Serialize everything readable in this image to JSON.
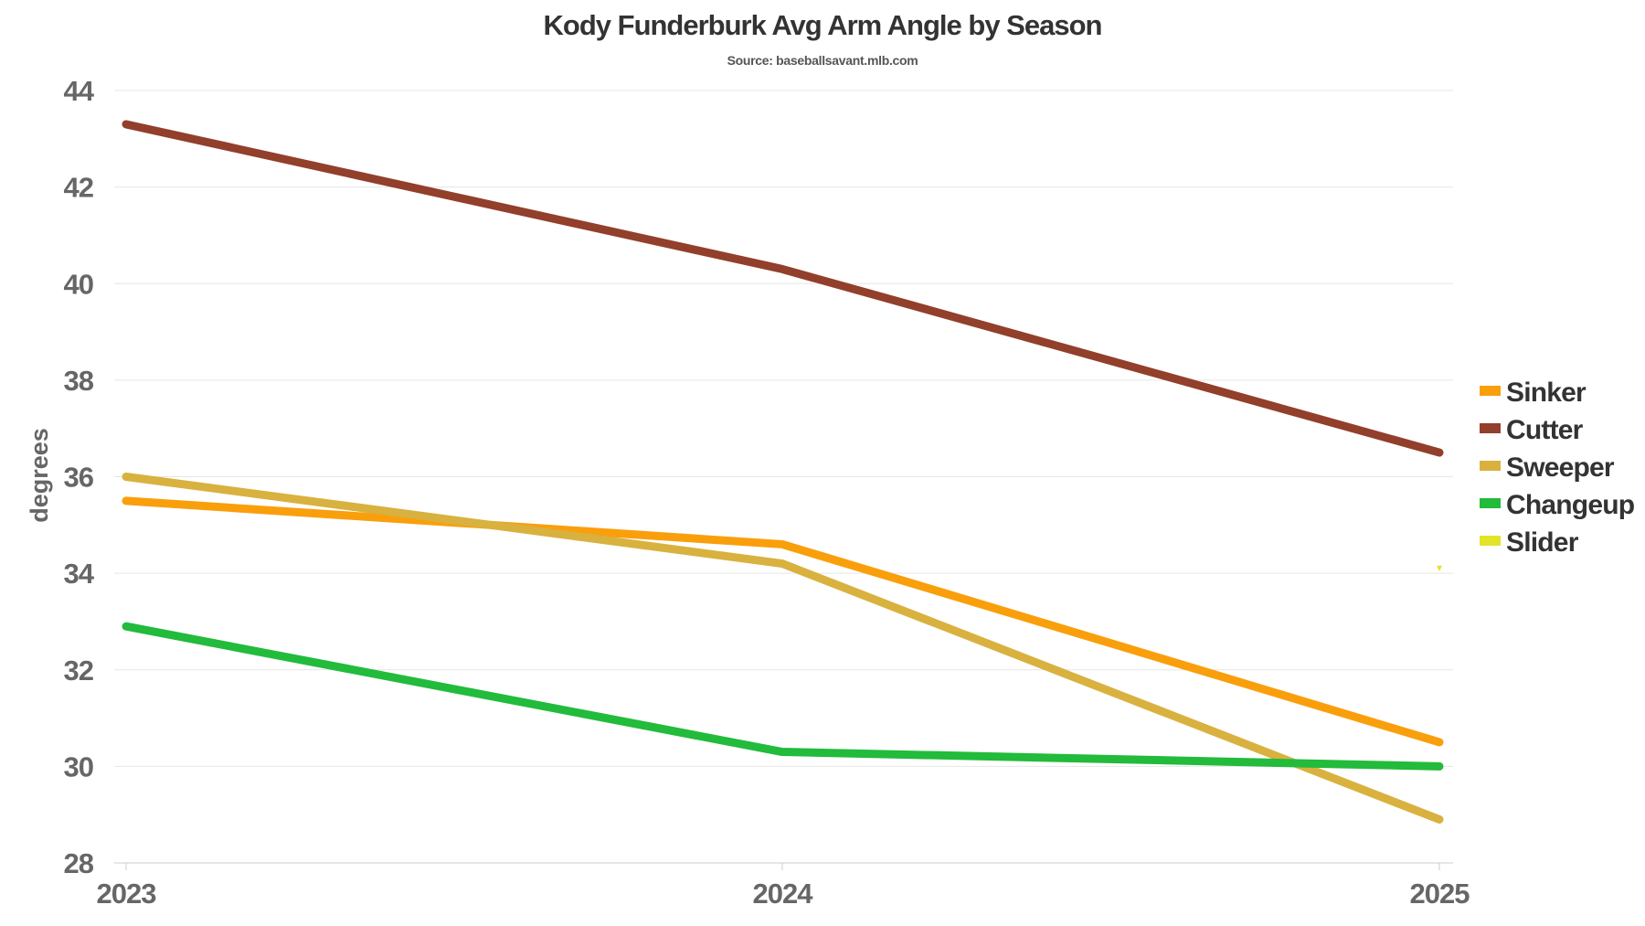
{
  "chart_data": {
    "type": "line",
    "title": "Kody Funderburk Avg Arm Angle by Season",
    "subtitle": "Source: baseballsavant.mlb.com",
    "xlabel": "",
    "ylabel": "degrees",
    "x": [
      "2023",
      "2024",
      "2025"
    ],
    "ylim": [
      28,
      44
    ],
    "yticks": [
      "28",
      "30",
      "32",
      "34",
      "36",
      "38",
      "40",
      "42",
      "44"
    ],
    "grid": true,
    "legend_position": "right",
    "series": [
      {
        "name": "Sinker",
        "color": "#F99F0C",
        "values": [
          35.5,
          34.6,
          30.5
        ]
      },
      {
        "name": "Cutter",
        "color": "#923F2B",
        "values": [
          43.3,
          40.3,
          36.5
        ]
      },
      {
        "name": "Sweeper",
        "color": "#D9B13F",
        "values": [
          36.0,
          34.2,
          28.9
        ]
      },
      {
        "name": "Changeup",
        "color": "#22BB3B",
        "values": [
          32.9,
          30.3,
          30.0
        ]
      },
      {
        "name": "Slider",
        "color": "#E3E32A",
        "values": [
          null,
          null,
          34.1
        ]
      }
    ]
  }
}
